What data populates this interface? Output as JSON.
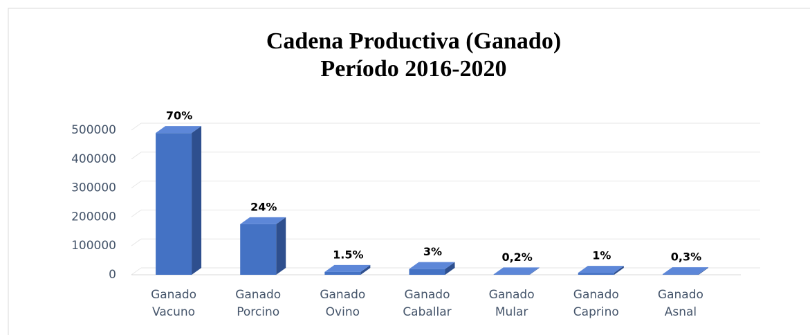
{
  "chart_data": {
    "type": "bar3d",
    "title": "Cadena Productiva  (Ganado)",
    "subtitle": "Período 2016-2020",
    "categories": [
      "Ganado Vacuno",
      "Ganado Porcino",
      "Ganado Ovino",
      "Ganado Caballar",
      "Ganado Mular",
      "Ganado Caprino",
      "Ganado Asnal"
    ],
    "values": [
      490000,
      175000,
      10000,
      20000,
      1500,
      7000,
      2000
    ],
    "labels": [
      "70%",
      "24%",
      "1.5%",
      "3%",
      "0,2%",
      "1%",
      "0,3%"
    ],
    "color": "#4472c4",
    "ylim": [
      0,
      500000
    ],
    "yticks": [
      0,
      100000,
      200000,
      300000,
      400000,
      500000
    ],
    "grid": true
  }
}
